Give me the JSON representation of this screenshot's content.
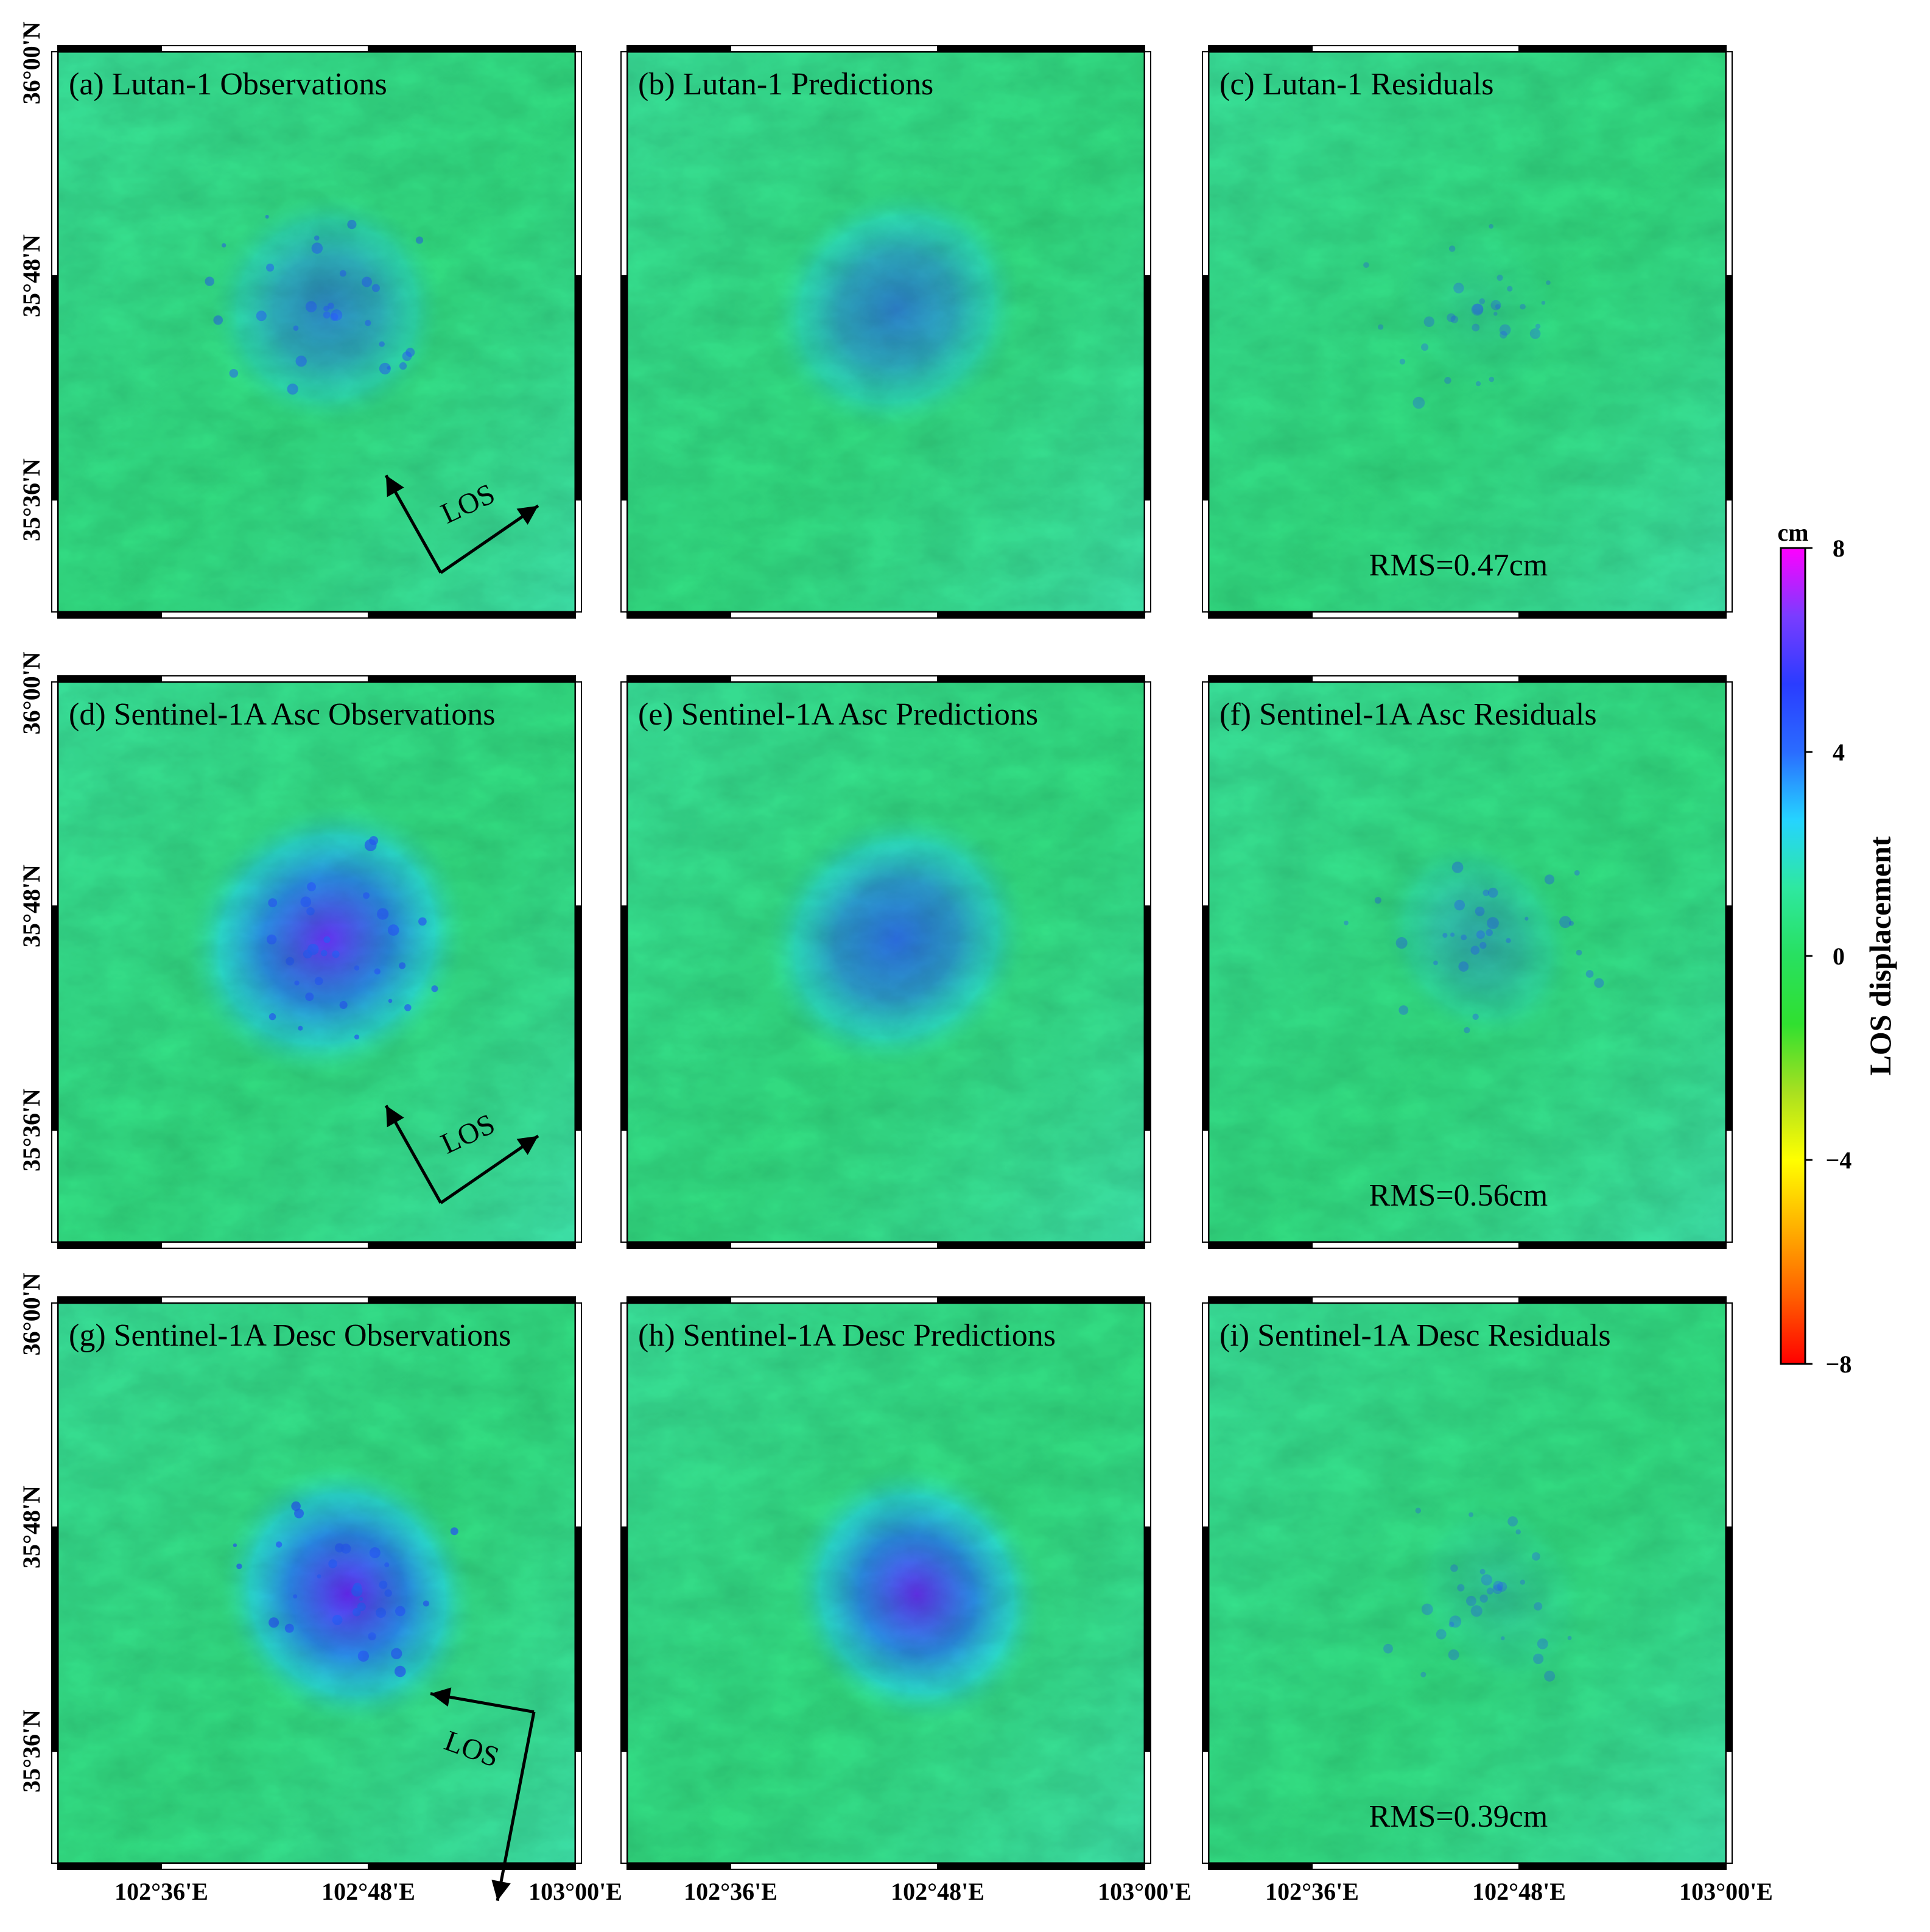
{
  "panels": [
    {
      "id": "a",
      "title": "(a) Lutan-1 Observations",
      "rms": "",
      "los": "LOS",
      "blob": {
        "intensity": 0.55,
        "ecc": 1.2,
        "noisy": true
      }
    },
    {
      "id": "b",
      "title": "(b) Lutan-1 Predictions",
      "rms": "",
      "los": "",
      "blob": {
        "intensity": 0.6,
        "ecc": 1.3,
        "noisy": false
      }
    },
    {
      "id": "c",
      "title": "(c) Lutan-1 Residuals",
      "rms": "RMS=0.47cm",
      "los": "",
      "blob": {
        "intensity": 0.05,
        "ecc": 1.0,
        "noisy": true
      }
    },
    {
      "id": "d",
      "title": "(d) Sentinel-1A Asc Observations",
      "rms": "",
      "los": "LOS",
      "blob": {
        "intensity": 0.95,
        "ecc": 1.3,
        "noisy": true
      }
    },
    {
      "id": "e",
      "title": "(e) Sentinel-1A Asc Predictions",
      "rms": "",
      "los": "",
      "blob": {
        "intensity": 0.75,
        "ecc": 1.3,
        "noisy": false
      }
    },
    {
      "id": "f",
      "title": "(f) Sentinel-1A Asc Residuals",
      "rms": "RMS=0.56cm",
      "los": "",
      "blob": {
        "intensity": 0.3,
        "ecc": 1.0,
        "noisy": true
      }
    },
    {
      "id": "g",
      "title": "(g) Sentinel-1A Desc Observations",
      "rms": "",
      "los": "LOS",
      "blob": {
        "intensity": 1.0,
        "ecc": 1.1,
        "noisy": true
      }
    },
    {
      "id": "h",
      "title": "(h) Sentinel-1A Desc Predictions",
      "rms": "",
      "los": "",
      "blob": {
        "intensity": 0.95,
        "ecc": 1.1,
        "noisy": false
      }
    },
    {
      "id": "i",
      "title": "(i) Sentinel-1A Desc Residuals",
      "rms": "RMS=0.39cm",
      "los": "",
      "blob": {
        "intensity": 0.12,
        "ecc": 1.0,
        "noisy": true
      }
    }
  ],
  "axes": {
    "lat_ticks": [
      "36°00'N",
      "35°48'N",
      "35°36'N"
    ],
    "lon_ticks": [
      "102°36'E",
      "102°48'E",
      "103°00'E"
    ]
  },
  "colorbar": {
    "unit": "cm",
    "label": "LOS displacement",
    "ticks": [
      "8",
      "4",
      "0",
      "−4",
      "−8"
    ],
    "colors": [
      "#ff00ff",
      "#7a3cff",
      "#2a3cff",
      "#2a6cff",
      "#25d4ff",
      "#2ee8a0",
      "#28e060",
      "#30e030",
      "#a8e020",
      "#ffff00",
      "#ffb000",
      "#ff6000",
      "#ff0000"
    ]
  },
  "colors": {
    "background_field": "#35e38f",
    "frame": "#000000"
  }
}
